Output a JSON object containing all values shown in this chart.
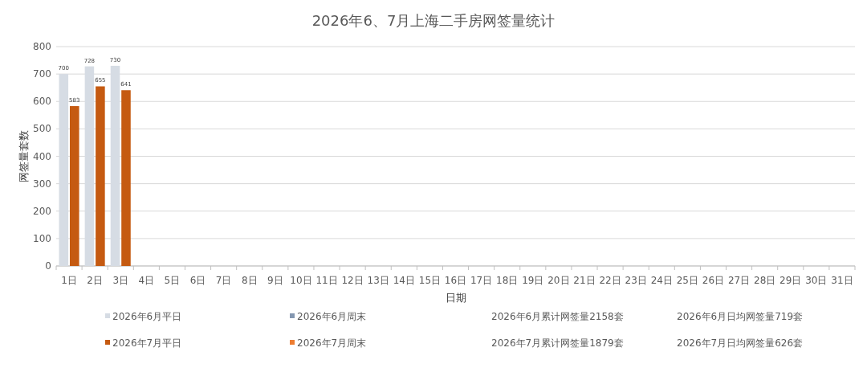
{
  "chart_data": {
    "type": "bar",
    "title": "2026年6、7月上海二手房网签量统计",
    "xlabel": "日期",
    "ylabel": "网签量套数",
    "categories": [
      "1日",
      "2日",
      "3日",
      "4日",
      "5日",
      "6日",
      "7日",
      "8日",
      "9日",
      "10日",
      "11日",
      "12日",
      "13日",
      "14日",
      "15日",
      "16日",
      "17日",
      "18日",
      "19日",
      "20日",
      "21日",
      "22日",
      "23日",
      "24日",
      "25日",
      "26日",
      "27日",
      "28日",
      "29日",
      "30日",
      "31日"
    ],
    "series": [
      {
        "name": "2026年6月平日",
        "color": "#d6dce4",
        "values": [
          700,
          728,
          730,
          null,
          null,
          null,
          null,
          null,
          null,
          null,
          null,
          null,
          null,
          null,
          null,
          null,
          null,
          null,
          null,
          null,
          null,
          null,
          null,
          null,
          null,
          null,
          null,
          null,
          null,
          null,
          null
        ]
      },
      {
        "name": "2026年6月周末",
        "color": "#8497b0",
        "values": [
          null,
          null,
          null,
          null,
          null,
          null,
          null,
          null,
          null,
          null,
          null,
          null,
          null,
          null,
          null,
          null,
          null,
          null,
          null,
          null,
          null,
          null,
          null,
          null,
          null,
          null,
          null,
          null,
          null,
          null,
          null
        ]
      },
      {
        "name": "2026年7月平日",
        "color": "#c55a11",
        "values": [
          583,
          655,
          641,
          null,
          null,
          null,
          null,
          null,
          null,
          null,
          null,
          null,
          null,
          null,
          null,
          null,
          null,
          null,
          null,
          null,
          null,
          null,
          null,
          null,
          null,
          null,
          null,
          null,
          null,
          null,
          null
        ]
      },
      {
        "name": "2026年7月周末",
        "color": "#ed7d31",
        "values": [
          null,
          null,
          null,
          null,
          null,
          null,
          null,
          null,
          null,
          null,
          null,
          null,
          null,
          null,
          null,
          null,
          null,
          null,
          null,
          null,
          null,
          null,
          null,
          null,
          null,
          null,
          null,
          null,
          null,
          null,
          null
        ]
      }
    ],
    "annotations": [
      "2026年6月累计网签量2158套",
      "2026年6月日均网签量719套",
      "2026年7月累计网签量1879套",
      "2026年7月日均网签量626套"
    ],
    "ylim": [
      0,
      800
    ],
    "yticks": [
      0,
      100,
      200,
      300,
      400,
      500,
      600,
      700,
      800
    ],
    "grid": "y",
    "legend": "bottom",
    "data_labels": true
  }
}
